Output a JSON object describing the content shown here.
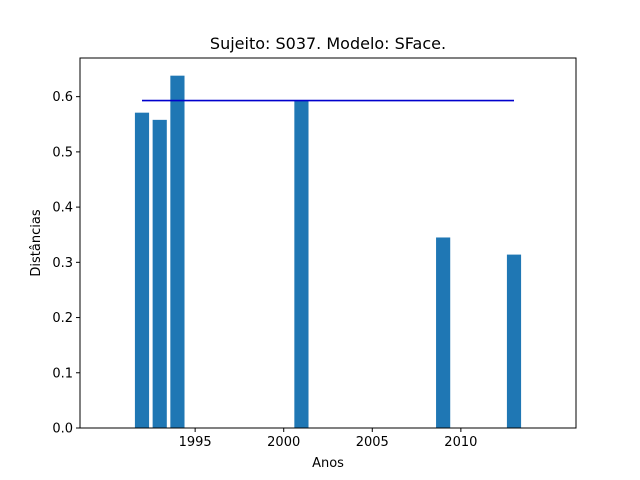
{
  "chart_data": {
    "type": "bar",
    "title": "Sujeito: S037. Modelo: SFace.",
    "xlabel": "Anos",
    "ylabel": "Distâncias",
    "x": [
      1992,
      1993,
      1994,
      2001,
      2009,
      2013
    ],
    "values": [
      0.571,
      0.558,
      0.638,
      0.593,
      0.345,
      0.314
    ],
    "bar_color": "#1f77b4",
    "reference_line": {
      "y": 0.593,
      "x_range": [
        1992,
        2013
      ],
      "color": "#0000cd"
    },
    "xlim": [
      1988.5,
      2016.5
    ],
    "ylim": [
      0,
      0.67
    ],
    "xticks": [
      1995,
      2000,
      2005,
      2010
    ],
    "xtick_labels": [
      "1995",
      "2000",
      "2005",
      "2010"
    ],
    "yticks": [
      0.0,
      0.1,
      0.2,
      0.3,
      0.4,
      0.5,
      0.6
    ],
    "ytick_labels": [
      "0.0",
      "0.1",
      "0.2",
      "0.3",
      "0.4",
      "0.5",
      "0.6"
    ],
    "grid": false,
    "legend": false
  }
}
